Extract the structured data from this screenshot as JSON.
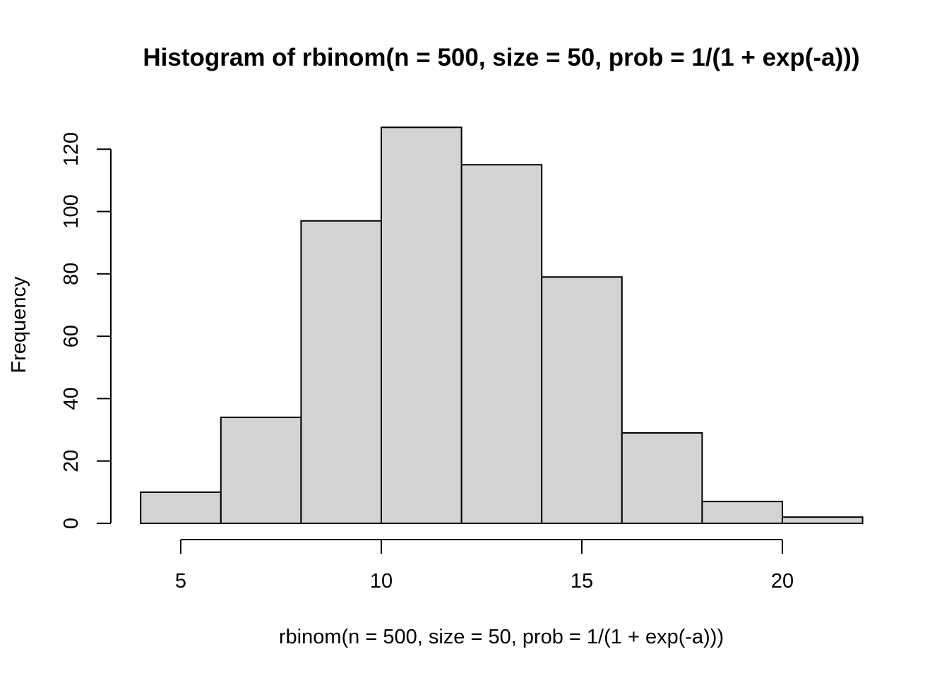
{
  "chart_data": {
    "type": "bar",
    "title": "Histogram of rbinom(n = 500, size = 50, prob = 1/(1 + exp(-a)))",
    "xlabel": "rbinom(n = 500, size = 50, prob = 1/(1 + exp(-a)))",
    "ylabel": "Frequency",
    "bins": [
      {
        "x0": 4,
        "x1": 6,
        "count": 10
      },
      {
        "x0": 6,
        "x1": 8,
        "count": 34
      },
      {
        "x0": 8,
        "x1": 10,
        "count": 97
      },
      {
        "x0": 10,
        "x1": 12,
        "count": 127
      },
      {
        "x0": 12,
        "x1": 14,
        "count": 115
      },
      {
        "x0": 14,
        "x1": 16,
        "count": 79
      },
      {
        "x0": 16,
        "x1": 18,
        "count": 29
      },
      {
        "x0": 18,
        "x1": 20,
        "count": 7
      },
      {
        "x0": 20,
        "x1": 22,
        "count": 2
      }
    ],
    "xticks": [
      5,
      10,
      15,
      20
    ],
    "yticks": [
      0,
      20,
      40,
      60,
      80,
      100,
      120
    ],
    "xlim": [
      4,
      22
    ],
    "ylim": [
      0,
      127
    ],
    "grid": false,
    "bar_color": "#d3d3d3",
    "edge_color": "#000000"
  }
}
